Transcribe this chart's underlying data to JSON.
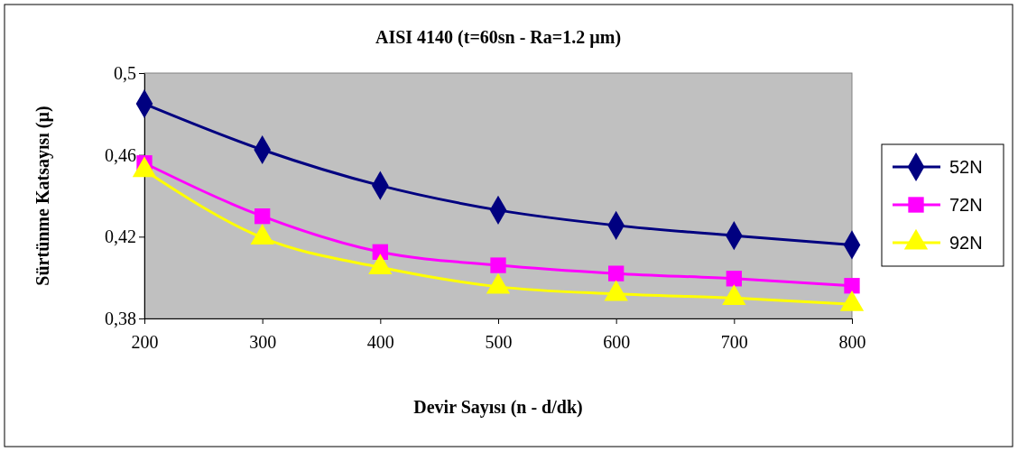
{
  "chart_data": {
    "type": "line",
    "title": "AISI 4140 (t=60sn - Ra=1.2 µm)",
    "xlabel": "Devir Sayısı (n - d/dk)",
    "ylabel": "Sürtünme Katsayısı (µ)",
    "x": [
      200,
      300,
      400,
      500,
      600,
      700,
      800
    ],
    "xlim": [
      200,
      800
    ],
    "xticks": [
      200,
      300,
      400,
      500,
      600,
      700,
      800
    ],
    "ylim": [
      0.38,
      0.5
    ],
    "yticks": [
      {
        "value": 0.38,
        "label": "0,38"
      },
      {
        "value": 0.42,
        "label": "0,42"
      },
      {
        "value": 0.46,
        "label": "0,46"
      },
      {
        "value": 0.5,
        "label": "0,5"
      }
    ],
    "series": [
      {
        "name": "52N",
        "color": "#000080",
        "marker": "diamond",
        "values": [
          0.485,
          0.4625,
          0.445,
          0.433,
          0.4255,
          0.4205,
          0.416
        ]
      },
      {
        "name": "72N",
        "color": "#ff00ff",
        "marker": "square",
        "values": [
          0.456,
          0.43,
          0.4125,
          0.406,
          0.402,
          0.3995,
          0.396
        ]
      },
      {
        "name": "92N",
        "color": "#ffff00",
        "marker": "triangle",
        "values": [
          0.4525,
          0.4195,
          0.405,
          0.3955,
          0.392,
          0.39,
          0.387
        ]
      }
    ],
    "legend": "right",
    "grid": false
  }
}
